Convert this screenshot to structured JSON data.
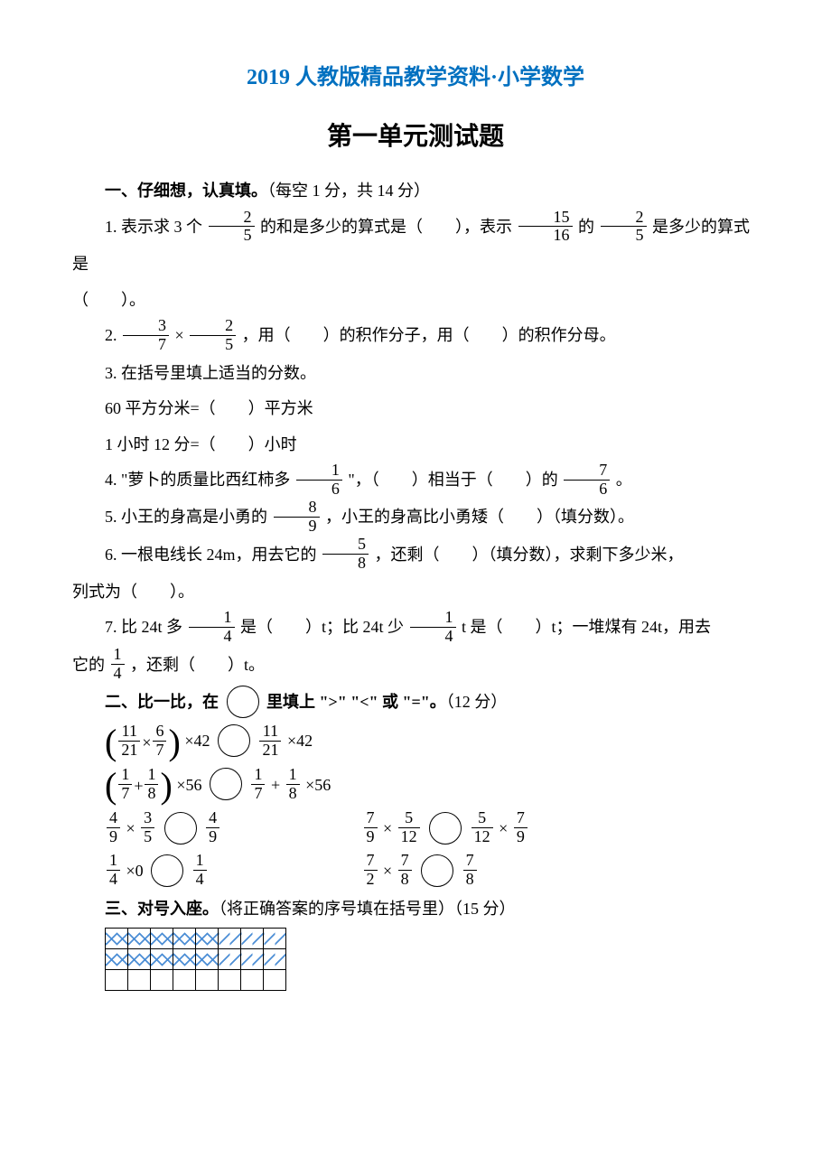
{
  "header": "2019 人教版精品教学资料·小学数学",
  "title_bold": "第一单元",
  "title_rest": "测试题",
  "s1": {
    "head": "一、仔细想，认真填。",
    "head_note": "（每空 1 分，共 14 分）",
    "q1_a": "1. 表示求 3 个",
    "q1_b": "的和是多少的算式是（　　），表示",
    "q1_c": "的",
    "q1_d": "是多少的算式是",
    "q1_e": "（　　）。",
    "frac_2_5_n": "2",
    "frac_2_5_d": "5",
    "frac_15_16_n": "15",
    "frac_15_16_d": "16",
    "q2_a": "2. ",
    "q2_b": " × ",
    "q2_c": "，用（　　）的积作分子，用（　　）的积作分母。",
    "frac_3_7_n": "3",
    "frac_3_7_d": "7",
    "q3": "3. 在括号里填上适当的分数。",
    "q3_l1": "60 平方分米=（　　）平方米",
    "q3_l2": "1 小时 12 分=（　　）小时",
    "q4_a": "4. \"萝卜的质量比西红柿多",
    "q4_b": "\"，（　　）相当于（　　）的",
    "q4_c": "。",
    "frac_1_6_n": "1",
    "frac_1_6_d": "6",
    "frac_7_6_n": "7",
    "frac_7_6_d": "6",
    "q5_a": "5. 小王的身高是小勇的",
    "q5_b": "，小王的身高比小勇矮（　　）（填分数）。",
    "frac_8_9_n": "8",
    "frac_8_9_d": "9",
    "q6_a": "6. 一根电线长 24m，用去它的",
    "q6_b": "，还剩（　　）（填分数），求剩下多少米，",
    "q6_c": "列式为（　　）。",
    "frac_5_8_n": "5",
    "frac_5_8_d": "8",
    "q7_a": "7. 比 24t 多",
    "q7_b": "是（　　）t；比 24t 少",
    "q7_c": " t 是（　　）t；一堆煤有 24t，用去",
    "q7_d": "它的",
    "q7_e": "，还剩（　　）t。",
    "frac_1_4_n": "1",
    "frac_1_4_d": "4"
  },
  "s2": {
    "head_a": "二、比一比，在",
    "head_b": "里填上 \">\" \"<\" 或 \"=\"。",
    "head_note": "（12 分）",
    "e1_l": {
      "a_n": "11",
      "a_d": "21",
      "op": "×",
      "b_n": "6",
      "b_d": "7",
      "mult": "×42"
    },
    "e1_r": {
      "a_n": "11",
      "a_d": "21",
      "mult": "×42"
    },
    "e2_l": {
      "a_n": "1",
      "a_d": "7",
      "op": "+",
      "b_n": "1",
      "b_d": "8",
      "mult": "×56"
    },
    "e2_r": {
      "a_n": "1",
      "a_d": "7",
      "op": "+",
      "b_n": "1",
      "b_d": "8",
      "mult": "×56"
    },
    "e3_l": {
      "a_n": "4",
      "a_d": "9",
      "op": "×",
      "b_n": "3",
      "b_d": "5"
    },
    "e3_r": {
      "a_n": "4",
      "a_d": "9"
    },
    "e3b_l": {
      "a_n": "7",
      "a_d": "9",
      "op": "×",
      "b_n": "5",
      "b_d": "12"
    },
    "e3b_r": {
      "a_n": "5",
      "a_d": "12",
      "op": "×",
      "b_n": "7",
      "b_d": "9"
    },
    "e4_l": {
      "a_n": "1",
      "a_d": "4",
      "op": "×0"
    },
    "e4_r": {
      "a_n": "1",
      "a_d": "4"
    },
    "e4b_l": {
      "a_n": "7",
      "a_d": "2",
      "op": "×",
      "b_n": "7",
      "b_d": "8"
    },
    "e4b_r": {
      "a_n": "7",
      "a_d": "8"
    }
  },
  "s3": {
    "head": "三、对号入座。",
    "head_note": "（将正确答案的序号填在括号里）（15 分）"
  },
  "grid": {
    "rows": 3,
    "cols": 8,
    "pattern": [
      [
        "c",
        "c",
        "c",
        "c",
        "c",
        "d",
        "d",
        "d"
      ],
      [
        "c",
        "c",
        "c",
        "c",
        "c",
        "d",
        "d",
        "d"
      ],
      [
        "",
        "",
        "",
        "",
        "",
        "",
        "",
        ""
      ]
    ]
  }
}
